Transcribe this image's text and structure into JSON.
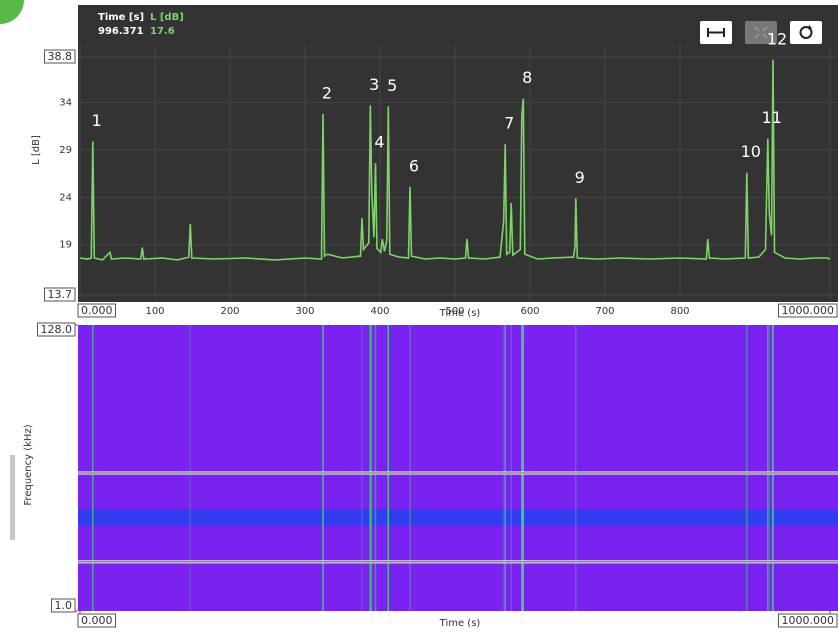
{
  "chart_data": [
    {
      "type": "line",
      "readout": {
        "time_label": "Time [s]",
        "level_label": "L [dB]",
        "time": 996.371,
        "level": 17.6
      },
      "x_label": "Time (s)",
      "y_label": "L [dB]",
      "xlim": [
        0,
        1000
      ],
      "ylim": [
        13.7,
        38.8
      ],
      "xticks": [
        {
          "value": 0,
          "label": "0.000"
        },
        100,
        200,
        300,
        400,
        500,
        600,
        700,
        800,
        {
          "value": 1000,
          "label": "1000.000"
        }
      ],
      "yticks": [
        38.8,
        34,
        29,
        24,
        19,
        13.7
      ],
      "grid": true,
      "series": [
        {
          "color": "#7fd36a",
          "x": [
            0,
            10,
            15,
            17,
            19,
            30,
            40,
            42,
            60,
            81,
            83,
            85,
            110,
            130,
            145,
            147,
            149,
            180,
            220,
            260,
            300,
            322,
            324,
            326,
            330,
            350,
            374,
            376,
            378,
            385,
            387,
            389,
            392,
            394,
            396,
            401,
            403,
            406,
            409,
            411,
            413,
            425,
            438,
            440,
            442,
            460,
            480,
            500,
            514,
            516,
            518,
            540,
            560,
            565,
            567,
            569,
            573,
            575,
            577,
            587,
            589,
            591,
            593,
            610,
            630,
            658,
            660,
            661,
            663,
            690,
            720,
            760,
            800,
            835,
            837,
            839,
            860,
            887,
            889,
            891,
            905,
            914,
            917,
            919,
            922,
            924,
            926,
            940,
            960,
            980,
            996.371,
            1000
          ],
          "values": [
            17.6,
            17.5,
            17.6,
            29.9,
            17.6,
            17.4,
            18.2,
            17.5,
            17.6,
            17.5,
            18.7,
            17.5,
            17.6,
            17.4,
            17.7,
            21.2,
            17.6,
            17.5,
            17.6,
            17.4,
            17.6,
            17.5,
            32.8,
            17.8,
            18.0,
            17.6,
            17.8,
            21.8,
            18.5,
            19.2,
            33.7,
            24.5,
            19.8,
            27.6,
            18.6,
            18.2,
            19.6,
            18.3,
            19.5,
            33.6,
            18.0,
            17.7,
            17.6,
            25.1,
            17.8,
            17.5,
            17.6,
            17.5,
            17.6,
            19.6,
            17.6,
            17.5,
            17.7,
            21.5,
            29.6,
            18.0,
            18.2,
            23.4,
            17.9,
            18.5,
            32.6,
            34.4,
            18.0,
            17.5,
            17.6,
            17.7,
            18.8,
            23.9,
            17.6,
            17.5,
            17.6,
            17.5,
            17.6,
            17.5,
            19.6,
            17.6,
            17.5,
            17.6,
            26.6,
            17.6,
            17.7,
            18.5,
            30.2,
            22.3,
            20.0,
            38.5,
            18.2,
            17.6,
            17.5,
            17.6,
            17.6,
            17.5
          ]
        }
      ],
      "annotations": [
        {
          "text": "1",
          "x": 17
        },
        {
          "text": "2",
          "x": 324
        },
        {
          "text": "3",
          "x": 387
        },
        {
          "text": "4",
          "x": 394
        },
        {
          "text": "5",
          "x": 411
        },
        {
          "text": "6",
          "x": 440
        },
        {
          "text": "7",
          "x": 567
        },
        {
          "text": "8",
          "x": 591
        },
        {
          "text": "9",
          "x": 661
        },
        {
          "text": "10",
          "x": 889
        },
        {
          "text": "11",
          "x": 917
        },
        {
          "text": "12",
          "x": 924
        }
      ]
    },
    {
      "type": "spectrogram",
      "x_label": "Time (s)",
      "y_label": "Frequency (kHz)",
      "xlim": [
        0,
        1000
      ],
      "ylim": [
        1,
        128
      ],
      "log_y": true,
      "xticks": [
        {
          "value": 0,
          "label": "0.000"
        },
        {
          "value": 1000,
          "label": "1000.000"
        }
      ],
      "yticks": [
        {
          "value": 128,
          "label": "128.0"
        },
        {
          "value": 1,
          "label": "1.0"
        }
      ],
      "selection": [
        2.3,
        10.4
      ],
      "background": "#7a22f0",
      "band_color": "#2a3ff0"
    }
  ]
}
